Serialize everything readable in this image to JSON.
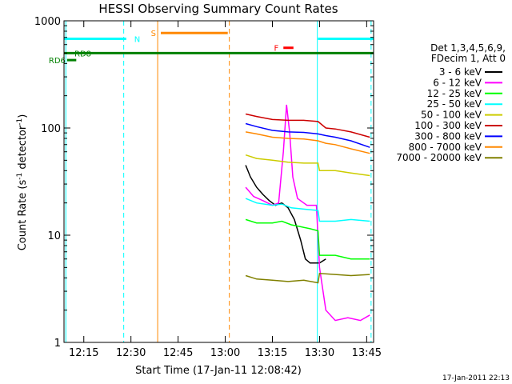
{
  "chart_data": {
    "type": "line",
    "title": "HESSI Observing Summary Count Rates",
    "xlabel": "Start Time (17-Jan-11 12:08:42)",
    "ylabel_main": "Count Rate (s",
    "ylabel_sup1": "-1",
    "ylabel_mid": " detector",
    "ylabel_sup2": "-1",
    "ylabel_end": ")",
    "y_scale": "log",
    "ylim": [
      1,
      1000
    ],
    "xlim_minutes": [
      728.7,
      827.2
    ],
    "x_ticks": [
      {
        "label": "12:15",
        "t": 735
      },
      {
        "label": "12:30",
        "t": 750
      },
      {
        "label": "12:45",
        "t": 765
      },
      {
        "label": "13:00",
        "t": 780
      },
      {
        "label": "13:15",
        "t": 795
      },
      {
        "label": "13:30",
        "t": 810
      },
      {
        "label": "13:45",
        "t": 825
      }
    ],
    "y_ticks": [
      {
        "label": "1",
        "v": 1
      },
      {
        "label": "10",
        "v": 10
      },
      {
        "label": "100",
        "v": 100
      },
      {
        "label": "1000",
        "v": 1000
      }
    ],
    "legend_header": [
      "Det 1,3,4,5,6,9,",
      "FDecim 1, Att 0"
    ],
    "legend_placement": "right",
    "series": [
      {
        "name": "3 - 6 keV",
        "color": "#000000",
        "points": [
          [
            786.5,
            45
          ],
          [
            788,
            35
          ],
          [
            790,
            28
          ],
          [
            792,
            24
          ],
          [
            794,
            21
          ],
          [
            796,
            19
          ],
          [
            798,
            20
          ],
          [
            800,
            18
          ],
          [
            802,
            14
          ],
          [
            804,
            9
          ],
          [
            805.5,
            6
          ],
          [
            807,
            5.5
          ],
          [
            810,
            5.5
          ],
          [
            812,
            6
          ]
        ]
      },
      {
        "name": "6 - 12 keV",
        "color": "#ff00ff",
        "points": [
          [
            786.5,
            28
          ],
          [
            789,
            23
          ],
          [
            792,
            21
          ],
          [
            795,
            19
          ],
          [
            797,
            20
          ],
          [
            798.5,
            60
          ],
          [
            799.5,
            165
          ],
          [
            800.5,
            90
          ],
          [
            801.5,
            35
          ],
          [
            803,
            22
          ],
          [
            806,
            19
          ],
          [
            809,
            19
          ],
          [
            810,
            5
          ],
          [
            812,
            2
          ],
          [
            815,
            1.6
          ],
          [
            819,
            1.7
          ],
          [
            823,
            1.6
          ],
          [
            826,
            1.8
          ]
        ]
      },
      {
        "name": "12 - 25 keV",
        "color": "#00ff00",
        "points": [
          [
            786.5,
            14
          ],
          [
            790,
            13
          ],
          [
            795,
            13
          ],
          [
            798,
            13.5
          ],
          [
            801,
            12.5
          ],
          [
            804,
            12
          ],
          [
            807,
            11.5
          ],
          [
            809.5,
            11
          ],
          [
            810,
            6.5
          ],
          [
            815,
            6.5
          ],
          [
            820,
            6
          ],
          [
            826,
            6
          ]
        ]
      },
      {
        "name": "25 - 50 keV",
        "color": "#00ffff",
        "points": [
          [
            786.5,
            22
          ],
          [
            790,
            20
          ],
          [
            795,
            19
          ],
          [
            798,
            19.5
          ],
          [
            801,
            18
          ],
          [
            805,
            17.5
          ],
          [
            809.5,
            17
          ],
          [
            810,
            13.5
          ],
          [
            815,
            13.5
          ],
          [
            820,
            14
          ],
          [
            826,
            13.5
          ]
        ]
      },
      {
        "name": "50 - 100 keV",
        "color": "#cccc00",
        "points": [
          [
            786.5,
            56
          ],
          [
            790,
            52
          ],
          [
            795,
            50
          ],
          [
            800,
            48
          ],
          [
            805,
            47
          ],
          [
            809.5,
            47
          ],
          [
            810,
            40
          ],
          [
            815,
            40
          ],
          [
            820,
            38
          ],
          [
            826,
            36
          ]
        ]
      },
      {
        "name": "100 - 300 keV",
        "color": "#cc0000",
        "points": [
          [
            786.5,
            135
          ],
          [
            790,
            128
          ],
          [
            795,
            120
          ],
          [
            800,
            118
          ],
          [
            805,
            118
          ],
          [
            809.5,
            115
          ],
          [
            812,
            100
          ],
          [
            815,
            98
          ],
          [
            820,
            92
          ],
          [
            826,
            82
          ]
        ]
      },
      {
        "name": "300 - 800 keV",
        "color": "#0000ff",
        "points": [
          [
            786.5,
            110
          ],
          [
            790,
            103
          ],
          [
            795,
            95
          ],
          [
            800,
            92
          ],
          [
            805,
            91
          ],
          [
            809.5,
            88
          ],
          [
            812,
            85
          ],
          [
            815,
            82
          ],
          [
            820,
            76
          ],
          [
            826,
            66
          ]
        ]
      },
      {
        "name": "800 - 7000 keV",
        "color": "#ff8800",
        "points": [
          [
            786.5,
            92
          ],
          [
            790,
            88
          ],
          [
            795,
            82
          ],
          [
            800,
            80
          ],
          [
            805,
            79
          ],
          [
            809.5,
            76
          ],
          [
            812,
            72
          ],
          [
            815,
            70
          ],
          [
            820,
            64
          ],
          [
            826,
            58
          ]
        ]
      },
      {
        "name": "7000 - 20000 keV",
        "color": "#808000",
        "points": [
          [
            786.5,
            4.2
          ],
          [
            790,
            3.9
          ],
          [
            795,
            3.8
          ],
          [
            800,
            3.7
          ],
          [
            805,
            3.8
          ],
          [
            809.5,
            3.6
          ],
          [
            810,
            4.4
          ],
          [
            815,
            4.3
          ],
          [
            820,
            4.2
          ],
          [
            826,
            4.3
          ]
        ]
      }
    ],
    "flag_bars": [
      {
        "label": "N",
        "color": "#00ffff",
        "t_start": 728.7,
        "t_end": 748.5,
        "v": 680
      },
      {
        "label": "S",
        "color": "#ff8800",
        "t_start": 759.5,
        "t_end": 780.8,
        "v": 770
      },
      {
        "label": "F",
        "color": "#ff0000",
        "t_start": 798.5,
        "t_end": 801.7,
        "v": 560
      },
      {
        "label": "",
        "color": "#00ffff",
        "t_start": 809.5,
        "t_end": 827.2,
        "v": 680
      },
      {
        "label": "RD8",
        "color": "#008000",
        "t_start": 728.7,
        "t_end": 827.2,
        "v": 500
      },
      {
        "label": "RD6",
        "color": "#008000",
        "t_start": 729.7,
        "t_end": 732.6,
        "v": 430
      }
    ],
    "vertical_lines": [
      {
        "t": 729.3,
        "color": "#00ffff",
        "style": "solid"
      },
      {
        "t": 747.7,
        "color": "#00ffff",
        "style": "dashed"
      },
      {
        "t": 758.5,
        "color": "#ff8800",
        "style": "solid"
      },
      {
        "t": 781.3,
        "color": "#ff8800",
        "style": "dashed"
      },
      {
        "t": 809.3,
        "color": "#00ffff",
        "style": "solid"
      },
      {
        "t": 826.4,
        "color": "#00ffff",
        "style": "dashed"
      }
    ]
  },
  "footer": {
    "timestamp": "17-Jan-2011 22:13"
  }
}
